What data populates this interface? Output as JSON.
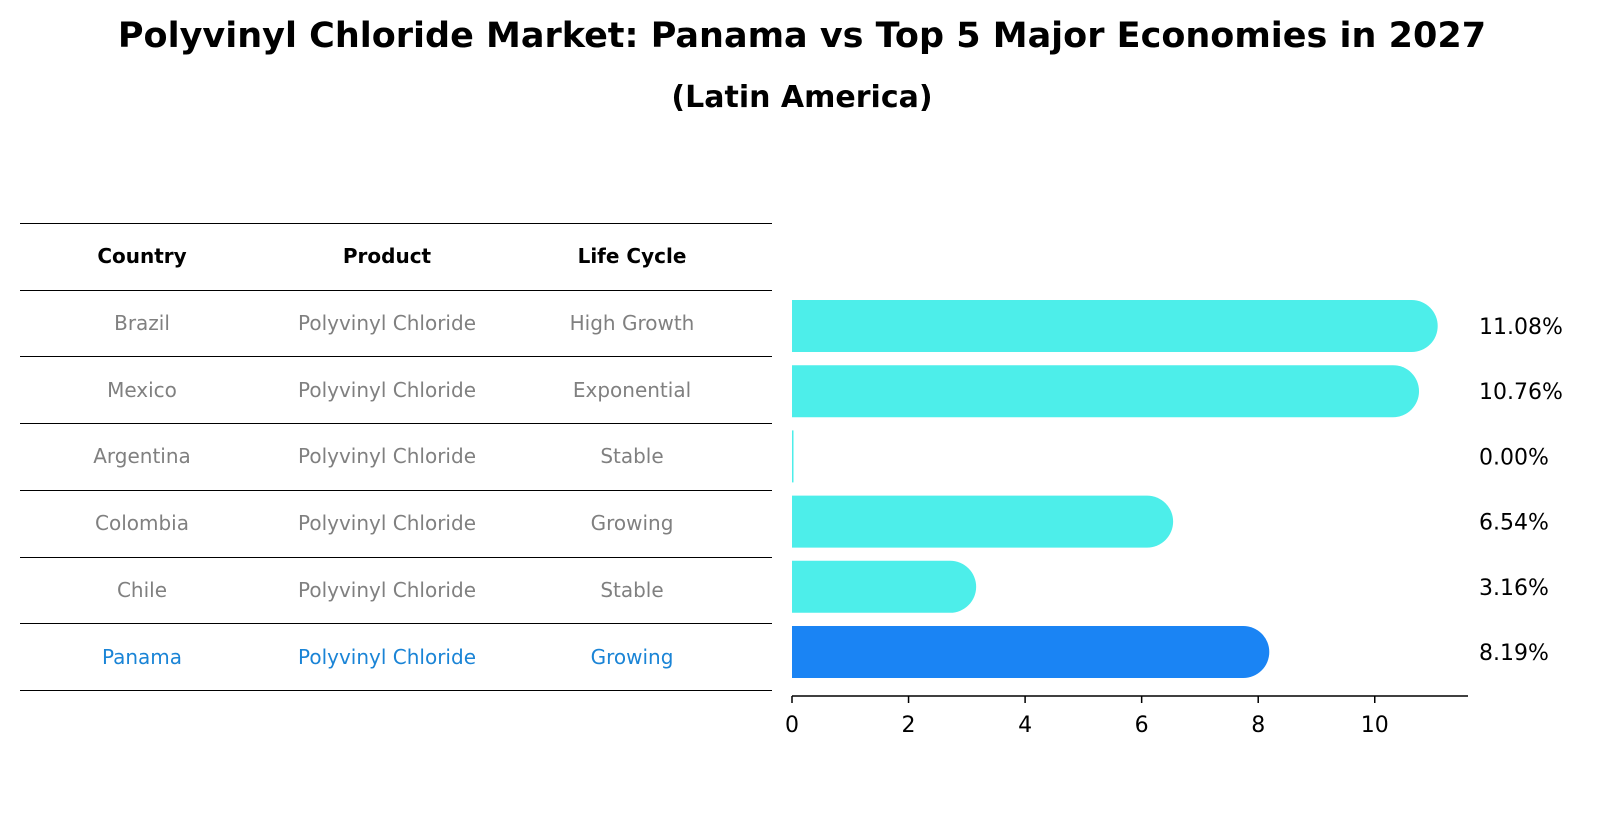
{
  "title": "Polyvinyl Chloride Market: Panama vs Top 5 Major Economies in 2027",
  "subtitle": "(Latin America)",
  "table": {
    "headers": [
      "Country",
      "Product",
      "Life Cycle"
    ],
    "rows": [
      {
        "country": "Brazil",
        "product": "Polyvinyl Chloride",
        "lifecycle": "High Growth"
      },
      {
        "country": "Mexico",
        "product": "Polyvinyl Chloride",
        "lifecycle": "Exponential"
      },
      {
        "country": "Argentina",
        "product": "Polyvinyl Chloride",
        "lifecycle": "Stable"
      },
      {
        "country": "Colombia",
        "product": "Polyvinyl Chloride",
        "lifecycle": "Growing"
      },
      {
        "country": "Chile",
        "product": "Polyvinyl Chloride",
        "lifecycle": "Stable"
      },
      {
        "country": "Panama",
        "product": "Polyvinyl Chloride",
        "lifecycle": "Growing"
      }
    ]
  },
  "chart_data": {
    "type": "bar",
    "orientation": "horizontal",
    "title": "Polyvinyl Chloride Market: Panama vs Top 5 Major Economies in 2027",
    "subtitle": "(Latin America)",
    "categories": [
      "Brazil",
      "Mexico",
      "Argentina",
      "Colombia",
      "Chile",
      "Panama"
    ],
    "values": [
      11.08,
      10.76,
      0.0,
      6.54,
      3.16,
      8.19
    ],
    "value_labels": [
      "11.08%",
      "10.76%",
      "0.00%",
      "6.54%",
      "3.16%",
      "8.19%"
    ],
    "highlight": "Panama",
    "xlim": [
      0,
      11.6
    ],
    "xticks": [
      0,
      2,
      4,
      6,
      8,
      10
    ],
    "xlabel": "",
    "ylabel": "",
    "grid": false,
    "colors": {
      "default": "#4deeea",
      "highlight": "#1a84f4"
    }
  }
}
